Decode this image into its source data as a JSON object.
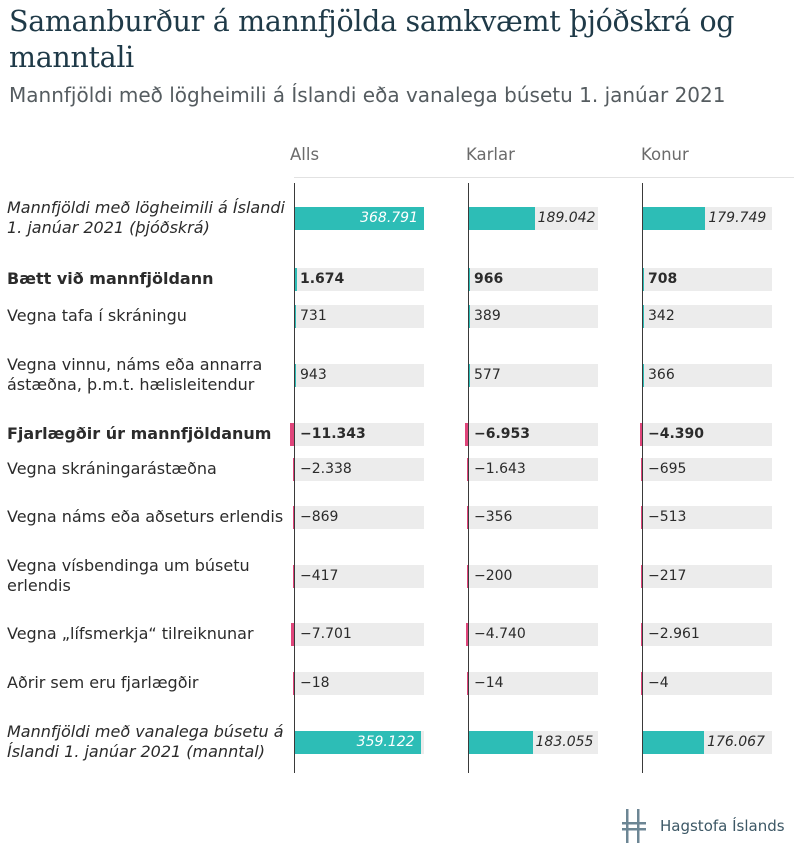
{
  "chart_data": {
    "type": "bar",
    "title": "Samanburður á mannfjölda samkvæmt þjóðskrá og manntali",
    "subtitle": "Mannfjöldi með lögheimili á Íslandi eða vanalega búsetu 1. janúar 2021",
    "columns": [
      "Alls",
      "Karlar",
      "Konur"
    ],
    "rows": [
      {
        "label": "Mannfjöldi með lögheimili á Íslandi 1. janúar 2021 (þjóðskrá)",
        "style": "italic",
        "kind": "total",
        "values": [
          368791,
          189042,
          179749
        ],
        "labels": [
          "368.791",
          "189.042",
          "179.749"
        ]
      },
      {
        "label": "Bætt við mannfjöldann",
        "style": "bold",
        "kind": "add",
        "values": [
          1674,
          966,
          708
        ],
        "labels": [
          "1.674",
          "966",
          "708"
        ]
      },
      {
        "label": "Vegna tafa í skráningu",
        "style": "normal",
        "kind": "add",
        "values": [
          731,
          389,
          342
        ],
        "labels": [
          "731",
          "389",
          "342"
        ]
      },
      {
        "label": "Vegna vinnu, náms eða annarra ástæðna, þ.m.t. hælisleitendur",
        "style": "normal",
        "kind": "add",
        "values": [
          943,
          577,
          366
        ],
        "labels": [
          "943",
          "577",
          "366"
        ]
      },
      {
        "label": "Fjarlægðir úr mannfjöldanum",
        "style": "bold",
        "kind": "remove",
        "values": [
          -11343,
          -6953,
          -4390
        ],
        "labels": [
          "−11.343",
          "−6.953",
          "−4.390"
        ]
      },
      {
        "label": "Vegna skráningarástæðna",
        "style": "normal",
        "kind": "remove",
        "values": [
          -2338,
          -1643,
          -695
        ],
        "labels": [
          "−2.338",
          "−1.643",
          "−695"
        ]
      },
      {
        "label": "Vegna náms eða aðseturs erlendis",
        "style": "normal",
        "kind": "remove",
        "values": [
          -869,
          -356,
          -513
        ],
        "labels": [
          "−869",
          "−356",
          "−513"
        ]
      },
      {
        "label": "Vegna vísbendinga um búsetu erlendis",
        "style": "normal",
        "kind": "remove",
        "values": [
          -417,
          -200,
          -217
        ],
        "labels": [
          "−417",
          "−200",
          "−217"
        ]
      },
      {
        "label": "Vegna „lífsmerkja“ tilreiknunar",
        "style": "normal",
        "kind": "remove",
        "values": [
          -7701,
          -4740,
          -2961
        ],
        "labels": [
          "−7.701",
          "−4.740",
          "−2.961"
        ]
      },
      {
        "label": "Aðrir sem eru fjarlægðir",
        "style": "normal",
        "kind": "remove",
        "values": [
          -18,
          -14,
          -4
        ],
        "labels": [
          "−18",
          "−14",
          "−4"
        ]
      },
      {
        "label": "Mannfjöldi með vanalega búsetu á Íslandi 1. janúar 2021 (manntal)",
        "style": "italic",
        "kind": "total",
        "values": [
          359122,
          183055,
          176067
        ],
        "labels": [
          "359.122",
          "183.055",
          "176.067"
        ]
      }
    ],
    "colors": {
      "total": "#2dbdb6",
      "add": "#2dbdb6",
      "remove": "#e0457b",
      "cell_bg": "#ececec",
      "axis": "#3a3a3a"
    }
  },
  "logo": {
    "text": "Hagstofa Íslands",
    "icon": "hagstofa-logo-icon"
  }
}
